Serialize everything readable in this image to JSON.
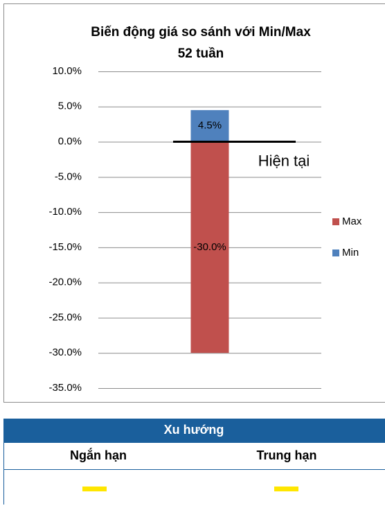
{
  "chart_data": {
    "type": "bar",
    "title": "Biến động giá so sánh với Min/Max",
    "subtitle": "52 tuần",
    "categories": [
      null
    ],
    "series": [
      {
        "name": "Max",
        "color": "#c0504d",
        "values": [
          -30
        ],
        "value_labels": [
          "-30.0%"
        ]
      },
      {
        "name": "Min",
        "color": "#4f81bd",
        "values": [
          4.5
        ],
        "value_labels": [
          "4.5%"
        ]
      }
    ],
    "annotation": "Hiện tại",
    "ylim": [
      -35,
      10
    ],
    "yticks": [
      {
        "value": -35,
        "label": "-35.0%"
      },
      {
        "value": -30,
        "label": "-30.0%"
      },
      {
        "value": -25,
        "label": "-25.0%"
      },
      {
        "value": -20,
        "label": "-20.0%"
      },
      {
        "value": -15,
        "label": "-15.0%"
      },
      {
        "value": -10,
        "label": "-10.0%"
      },
      {
        "value": -5,
        "label": "-5.0%"
      },
      {
        "value": 0,
        "label": "0.0%"
      },
      {
        "value": 5,
        "label": "5.0%"
      },
      {
        "value": 10,
        "label": "10.0%"
      }
    ],
    "grid": true,
    "legend": "right"
  },
  "table": {
    "header": "Xu hướng",
    "columns": [
      "Ngắn hạn",
      "Trung hạn"
    ]
  }
}
